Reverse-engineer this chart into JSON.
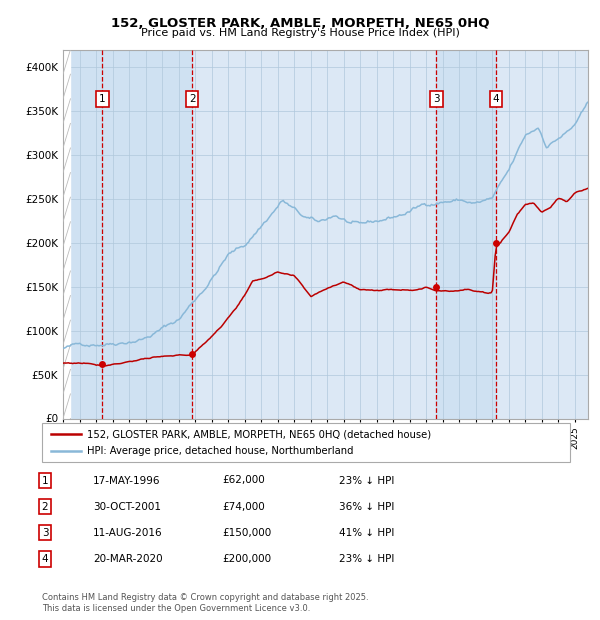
{
  "title": "152, GLOSTER PARK, AMBLE, MORPETH, NE65 0HQ",
  "subtitle": "Price paid vs. HM Land Registry's House Price Index (HPI)",
  "background_color": "#ffffff",
  "plot_bg_color": "#dce8f5",
  "hpi_color": "#89b8d8",
  "price_color": "#bb0000",
  "marker_color": "#cc0000",
  "vline_color": "#cc0000",
  "xmin": 1994.0,
  "xmax": 2025.8,
  "ymin": 0,
  "ymax": 420000,
  "yticks": [
    0,
    50000,
    100000,
    150000,
    200000,
    250000,
    300000,
    350000,
    400000
  ],
  "ytick_labels": [
    "£0",
    "£50K",
    "£100K",
    "£150K",
    "£200K",
    "£250K",
    "£300K",
    "£350K",
    "£400K"
  ],
  "transactions": [
    {
      "label": "1",
      "date_num": 1996.38,
      "price": 62000,
      "date_str": "17-MAY-1996",
      "pct": "23%",
      "dir": "↓"
    },
    {
      "label": "2",
      "date_num": 2001.83,
      "price": 74000,
      "date_str": "30-OCT-2001",
      "pct": "36%",
      "dir": "↓"
    },
    {
      "label": "3",
      "date_num": 2016.61,
      "price": 150000,
      "date_str": "11-AUG-2016",
      "pct": "41%",
      "dir": "↓"
    },
    {
      "label": "4",
      "date_num": 2020.22,
      "price": 200000,
      "date_str": "20-MAR-2020",
      "pct": "23%",
      "dir": "↓"
    }
  ],
  "legend_line1": "152, GLOSTER PARK, AMBLE, MORPETH, NE65 0HQ (detached house)",
  "legend_line2": "HPI: Average price, detached house, Northumberland",
  "footer": "Contains HM Land Registry data © Crown copyright and database right 2025.\nThis data is licensed under the Open Government Licence v3.0.",
  "table_rows": [
    [
      "1",
      "17-MAY-1996",
      "£62,000",
      "23% ↓ HPI"
    ],
    [
      "2",
      "30-OCT-2001",
      "£74,000",
      "36% ↓ HPI"
    ],
    [
      "3",
      "11-AUG-2016",
      "£150,000",
      "41% ↓ HPI"
    ],
    [
      "4",
      "20-MAR-2020",
      "£200,000",
      "23% ↓ HPI"
    ]
  ]
}
